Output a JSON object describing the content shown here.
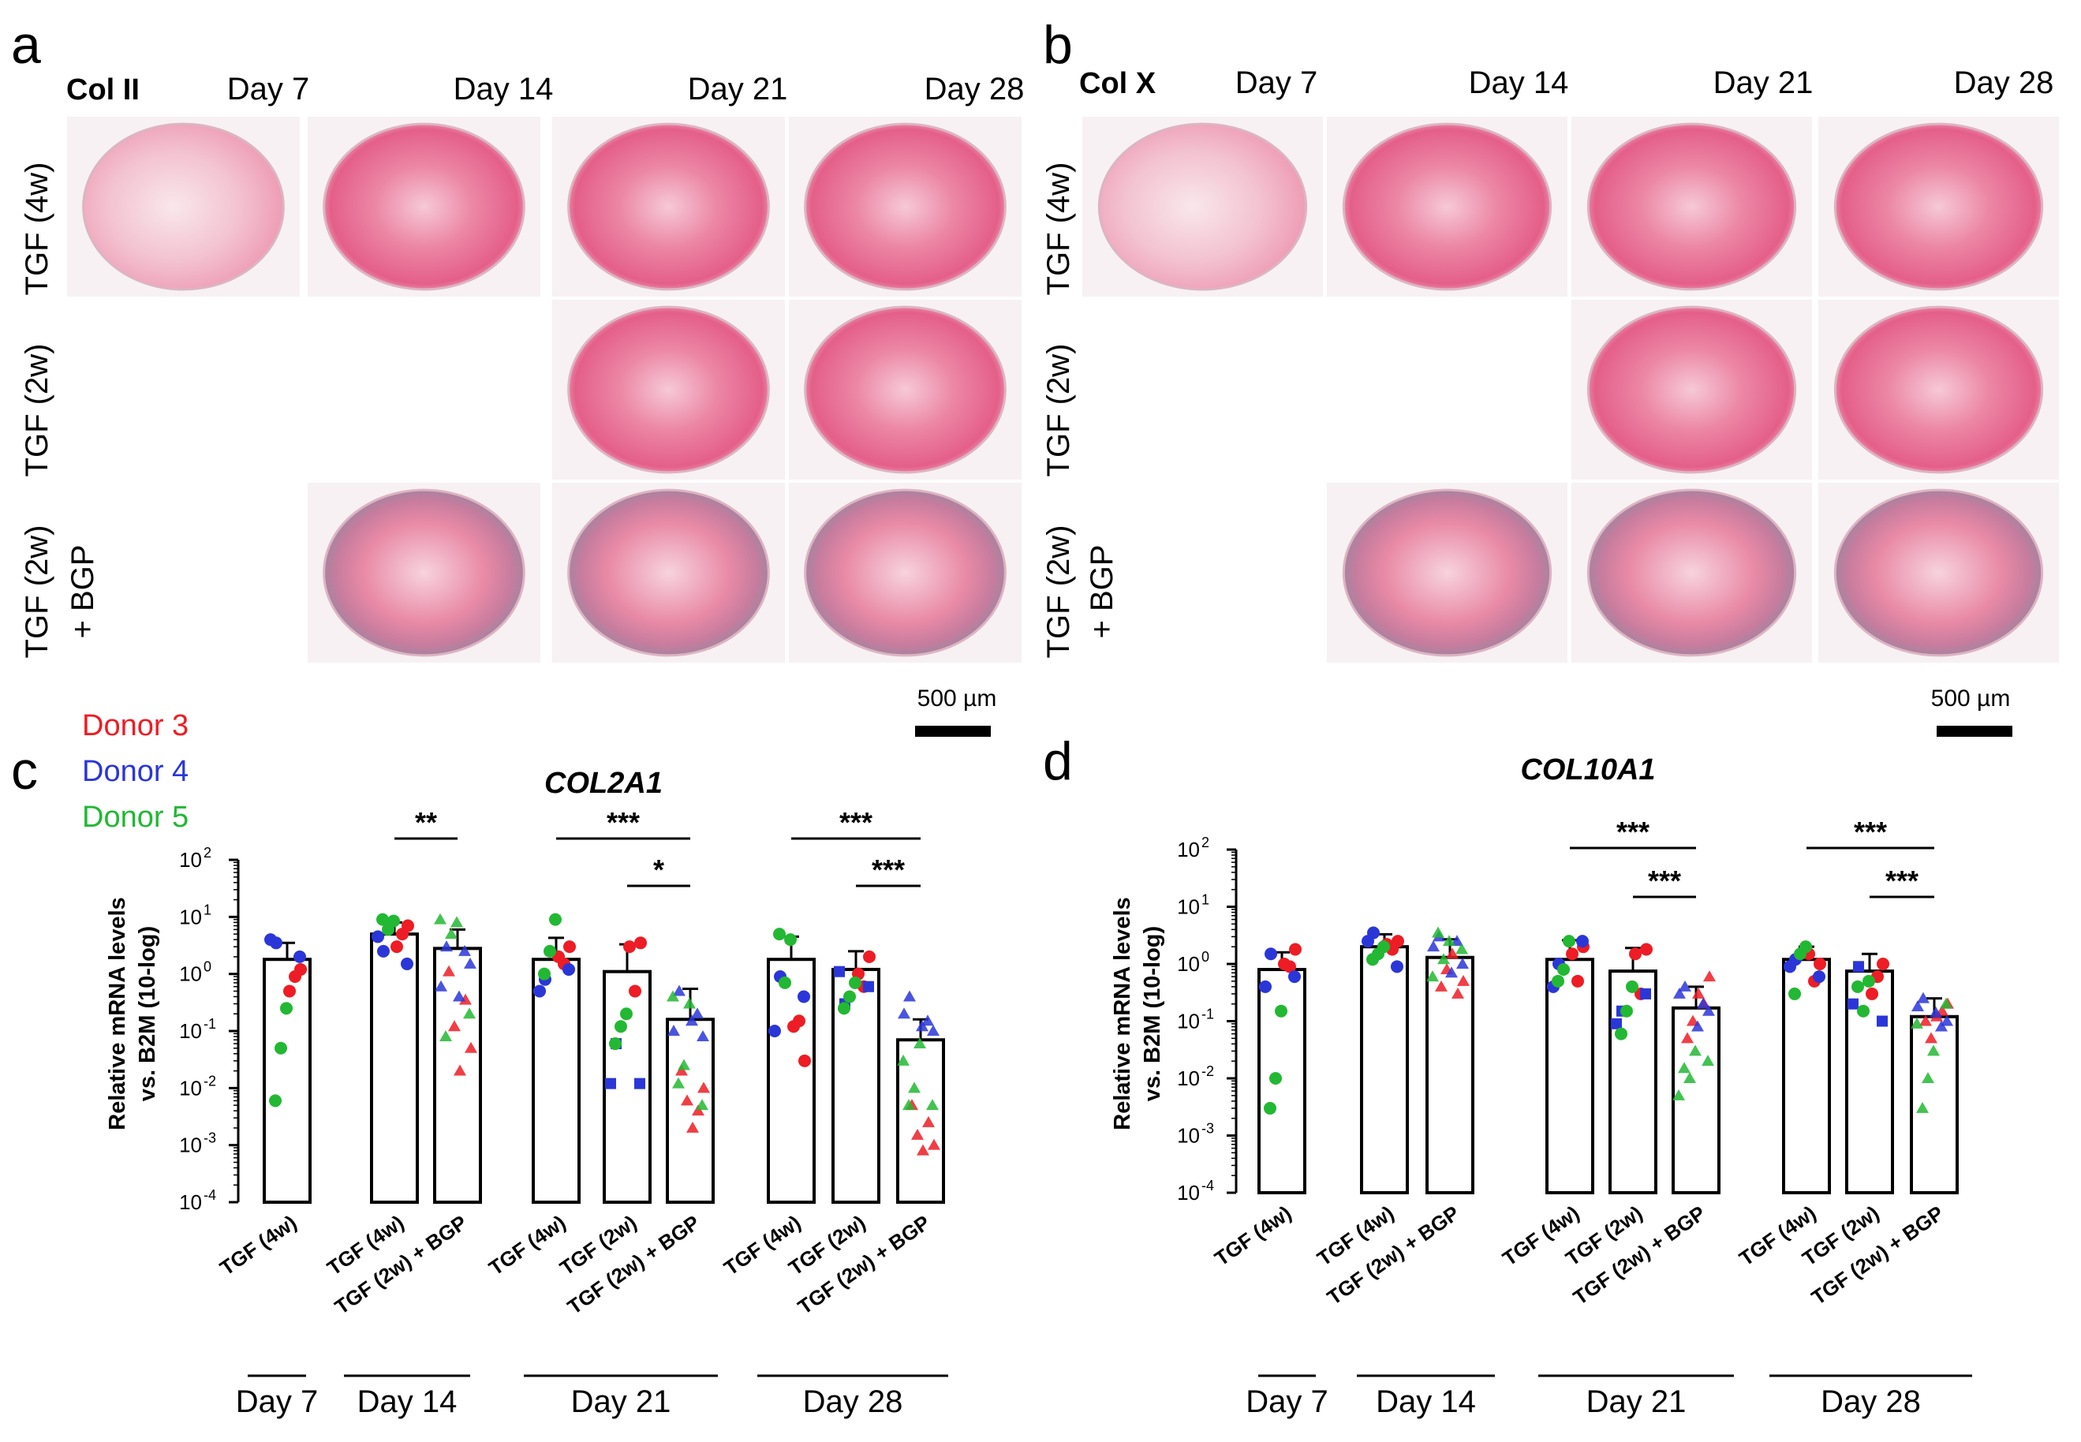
{
  "figure": {
    "panels": [
      {
        "letter": "a",
        "stain": "Col II",
        "days": [
          "Day 7",
          "Day 14",
          "Day 21",
          "Day 28"
        ],
        "rows": [
          {
            "label": "TGF (4w)",
            "lines": [
              "TGF (4w)"
            ],
            "present": [
              true,
              true,
              true,
              true
            ]
          },
          {
            "label": "TGF (2w)",
            "lines": [
              "TGF (2w)"
            ],
            "present": [
              false,
              false,
              true,
              true
            ]
          },
          {
            "label": "TGF (2w) + BGP",
            "lines": [
              "TGF (2w)",
              "+ BGP"
            ],
            "present": [
              false,
              true,
              true,
              true
            ]
          }
        ],
        "scale_bar": "500 µm"
      },
      {
        "letter": "b",
        "stain": "Col X",
        "days": [
          "Day 7",
          "Day 14",
          "Day 21",
          "Day 28"
        ],
        "rows": [
          {
            "label": "TGF (4w)",
            "lines": [
              "TGF (4w)"
            ],
            "present": [
              true,
              true,
              true,
              true
            ]
          },
          {
            "label": "TGF (2w)",
            "lines": [
              "TGF (2w)"
            ],
            "present": [
              false,
              false,
              true,
              true
            ]
          },
          {
            "label": "TGF (2w) + BGP",
            "lines": [
              "TGF (2w)",
              "+ BGP"
            ],
            "present": [
              false,
              true,
              true,
              true
            ]
          }
        ],
        "scale_bar": "500 µm"
      }
    ],
    "legend": [
      {
        "label": "Donor 3",
        "color": "#ee1c24"
      },
      {
        "label": "Donor 4",
        "color": "#2b36d9"
      },
      {
        "label": "Donor 5",
        "color": "#22b833"
      }
    ],
    "stain_colors": {
      "pink": "#e8648c",
      "light": "#f7dbe3",
      "gray": "#9a98a8"
    }
  },
  "chart_data": [
    {
      "type": "bar",
      "letter": "c",
      "title": "COL2A1",
      "ylabel": [
        "Relative mRNA levels",
        "vs. B2M (10-log)"
      ],
      "yscale": "log",
      "ylim": [
        0.0001,
        100
      ],
      "yticks": [
        {
          "base": "10",
          "exp": "2"
        },
        {
          "base": "10",
          "exp": "1"
        },
        {
          "base": "10",
          "exp": "0"
        },
        {
          "base": "10",
          "exp": "-1"
        },
        {
          "base": "10",
          "exp": "-2"
        },
        {
          "base": "10",
          "exp": "-3"
        },
        {
          "base": "10",
          "exp": "-4"
        }
      ],
      "groups": [
        {
          "day": "Day 7",
          "bars": [
            {
              "label": "TGF (4w)",
              "mean": 1.8,
              "sd_upper": 3.5,
              "points": {
                "3": [
                  1.2,
                  0.9,
                  0.5
                ],
                "4": [
                  3.5,
                  4.0,
                  2.0
                ],
                "5": [
                  0.25,
                  0.05,
                  0.006
                ]
              }
            }
          ]
        },
        {
          "day": "Day 14",
          "bars": [
            {
              "label": "TGF (4w)",
              "mean": 5.0,
              "sd_upper": 8.0,
              "points": {
                "3": [
                  7.0,
                  5.0,
                  3.0
                ],
                "4": [
                  2.5,
                  4.5,
                  1.5
                ],
                "5": [
                  8.5,
                  6.0,
                  9.0
                ]
              }
            }
          ]
        },
        {
          "day": "Day 14",
          "bars": [
            {
              "label": "TGF (2w) + BGP",
              "mean": 2.8,
              "sd_upper": 6.0,
              "points": {
                "3": [
                  0.05,
                  0.35,
                  0.02,
                  0.12,
                  1.1
                ],
                "4": [
                  3.0,
                  0.6,
                  1.5,
                  2.5,
                  0.4
                ],
                "5": [
                  8.0,
                  5.0,
                  0.08,
                  9.0,
                  0.2
                ]
              }
            }
          ]
        },
        {
          "day": "Day 21",
          "bars": [
            {
              "label": "TGF (4w)",
              "mean": 1.8,
              "sd_upper": 4.3,
              "points": {
                "3": [
                  3.0,
                  1.5,
                  2.0
                ],
                "4": [
                  0.8,
                  0.5,
                  1.2
                ],
                "5": [
                  9.0,
                  2.5,
                  1.0
                ]
              }
            }
          ]
        },
        {
          "day": "Day 21",
          "bars": [
            {
              "label": "TGF (2w)",
              "mean": 1.1,
              "sd_upper": 3.3,
              "points": {
                "3": [
                  3.5,
                  0.5,
                  3.0
                ],
                "4": [
                  0.06,
                  0.012,
                  0.012
                ],
                "5": [
                  0.2,
                  0.12,
                  0.06
                ]
              }
            }
          ]
        },
        {
          "day": "Day 21",
          "bars": [
            {
              "label": "TGF (2w) + BGP",
              "mean": 0.16,
              "sd_upper": 0.55,
              "points": {
                "3": [
                  0.01,
                  0.004,
                  0.002,
                  0.006,
                  0.02
                ],
                "4": [
                  0.5,
                  0.1,
                  0.08,
                  0.2,
                  0.15
                ],
                "5": [
                  0.3,
                  0.025,
                  0.012,
                  0.4,
                  0.005
                ]
              }
            }
          ]
        },
        {
          "day": "Day 28",
          "bars": [
            {
              "label": "TGF (4w)",
              "mean": 1.8,
              "sd_upper": 4.5,
              "points": {
                "3": [
                  0.03,
                  0.15,
                  0.12
                ],
                "4": [
                  0.9,
                  0.1,
                  0.4
                ],
                "5": [
                  4.0,
                  0.7,
                  5.0
                ]
              }
            }
          ]
        },
        {
          "day": "Day 28",
          "bars": [
            {
              "label": "TGF (2w)",
              "mean": 1.2,
              "sd_upper": 2.5,
              "points": {
                "3": [
                  2.0,
                  0.6,
                  1.0
                ],
                "4": [
                  0.3,
                  1.1,
                  0.6
                ],
                "5": [
                  0.7,
                  0.4,
                  0.25
                ]
              }
            }
          ]
        },
        {
          "day": "Day 28",
          "bars": [
            {
              "label": "TGF (2w) + BGP",
              "mean": 0.07,
              "sd_upper": 0.16,
              "points": {
                "3": [
                  0.001,
                  0.0025,
                  0.0008,
                  0.0015,
                  0.005
                ],
                "4": [
                  0.4,
                  0.2,
                  0.1,
                  0.15,
                  0.12
                ],
                "5": [
                  0.06,
                  0.01,
                  0.005,
                  0.03,
                  0.005
                ]
              }
            }
          ]
        }
      ],
      "significance": [
        {
          "from": 1,
          "to": 2,
          "label": "**",
          "level": 0
        },
        {
          "from": 3,
          "to": 5,
          "label": "***",
          "level": 0
        },
        {
          "from": 4,
          "to": 5,
          "label": "*",
          "level": 1
        },
        {
          "from": 6,
          "to": 8,
          "label": "***",
          "level": 0
        },
        {
          "from": 7,
          "to": 8,
          "label": "***",
          "level": 1
        }
      ],
      "day_labels": [
        "Day 7",
        "Day 14",
        "Day 21",
        "Day 28"
      ]
    },
    {
      "type": "bar",
      "letter": "d",
      "title": "COL10A1",
      "ylabel": [
        "Relative mRNA levels",
        "vs. B2M (10-log)"
      ],
      "yscale": "log",
      "ylim": [
        0.0001,
        100
      ],
      "yticks": [
        {
          "base": "10",
          "exp": "2"
        },
        {
          "base": "10",
          "exp": "1"
        },
        {
          "base": "10",
          "exp": "0"
        },
        {
          "base": "10",
          "exp": "-1"
        },
        {
          "base": "10",
          "exp": "-2"
        },
        {
          "base": "10",
          "exp": "-3"
        },
        {
          "base": "10",
          "exp": "-4"
        }
      ],
      "groups": [
        {
          "day": "Day 7",
          "bars": [
            {
              "label": "TGF (4w)",
              "mean": 0.8,
              "sd_upper": 1.6,
              "points": {
                "3": [
                  1.8,
                  0.9,
                  1.0
                ],
                "4": [
                  1.5,
                  0.4,
                  0.6
                ],
                "5": [
                  0.15,
                  0.01,
                  0.003
                ]
              }
            }
          ]
        },
        {
          "day": "Day 14",
          "bars": [
            {
              "label": "TGF (4w)",
              "mean": 2.0,
              "sd_upper": 3.3,
              "points": {
                "3": [
                  2.5,
                  1.8,
                  2.2
                ],
                "4": [
                  3.5,
                  2.5,
                  0.9
                ],
                "5": [
                  2.0,
                  1.5,
                  1.2
                ]
              }
            }
          ]
        },
        {
          "day": "Day 14",
          "bars": [
            {
              "label": "TGF (2w) + BGP",
              "mean": 1.3,
              "sd_upper": 2.7,
              "points": {
                "3": [
                  0.5,
                  0.3,
                  1.5,
                  0.8,
                  0.4
                ],
                "4": [
                  3.0,
                  2.0,
                  1.0,
                  2.5,
                  0.7
                ],
                "5": [
                  2.5,
                  1.2,
                  3.5,
                  0.6,
                  1.8
                ]
              }
            }
          ]
        },
        {
          "day": "Day 21",
          "bars": [
            {
              "label": "TGF (4w)",
              "mean": 1.2,
              "sd_upper": 2.6,
              "points": {
                "3": [
                  2.0,
                  0.5,
                  1.5
                ],
                "4": [
                  1.0,
                  0.4,
                  2.5
                ],
                "5": [
                  2.5,
                  0.8,
                  0.5
                ]
              }
            }
          ]
        },
        {
          "day": "Day 21",
          "bars": [
            {
              "label": "TGF (2w)",
              "mean": 0.75,
              "sd_upper": 1.9,
              "points": {
                "3": [
                  1.8,
                  0.3,
                  1.5
                ],
                "4": [
                  0.15,
                  0.09,
                  0.3
                ],
                "5": [
                  0.4,
                  0.15,
                  0.06
                ]
              }
            }
          ]
        },
        {
          "day": "Day 21",
          "bars": [
            {
              "label": "TGF (2w) + BGP",
              "mean": 0.17,
              "sd_upper": 0.4,
              "points": {
                "3": [
                  0.6,
                  0.2,
                  0.3,
                  0.1,
                  0.05
                ],
                "4": [
                  0.4,
                  0.3,
                  0.15,
                  0.2,
                  0.08
                ],
                "5": [
                  0.03,
                  0.01,
                  0.015,
                  0.005,
                  0.02
                ]
              }
            }
          ]
        },
        {
          "day": "Day 28",
          "bars": [
            {
              "label": "TGF (4w)",
              "mean": 1.2,
              "sd_upper": 2.0,
              "points": {
                "3": [
                  1.0,
                  0.5,
                  1.5
                ],
                "4": [
                  1.2,
                  0.9,
                  0.6
                ],
                "5": [
                  2.0,
                  1.5,
                  0.3
                ]
              }
            }
          ]
        },
        {
          "day": "Day 28",
          "bars": [
            {
              "label": "TGF (2w)",
              "mean": 0.75,
              "sd_upper": 1.5,
              "points": {
                "3": [
                  1.0,
                  0.6,
                  0.3
                ],
                "4": [
                  0.9,
                  0.2,
                  0.1
                ],
                "5": [
                  0.5,
                  0.15,
                  0.4
                ]
              }
            }
          ]
        },
        {
          "day": "Day 28",
          "bars": [
            {
              "label": "TGF (2w) + BGP",
              "mean": 0.12,
              "sd_upper": 0.25,
              "points": {
                "3": [
                  0.2,
                  0.15,
                  0.12,
                  0.05,
                  0.1
                ],
                "4": [
                  0.25,
                  0.18,
                  0.1,
                  0.08,
                  0.14
                ],
                "5": [
                  0.03,
                  0.01,
                  0.003,
                  0.09,
                  0.2
                ]
              }
            }
          ]
        }
      ],
      "significance": [
        {
          "from": 3,
          "to": 5,
          "label": "***",
          "level": 0
        },
        {
          "from": 4,
          "to": 5,
          "label": "***",
          "level": 1
        },
        {
          "from": 6,
          "to": 8,
          "label": "***",
          "level": 0
        },
        {
          "from": 7,
          "to": 8,
          "label": "***",
          "level": 1
        }
      ],
      "day_labels": [
        "Day 7",
        "Day 14",
        "Day 21",
        "Day 28"
      ]
    }
  ]
}
